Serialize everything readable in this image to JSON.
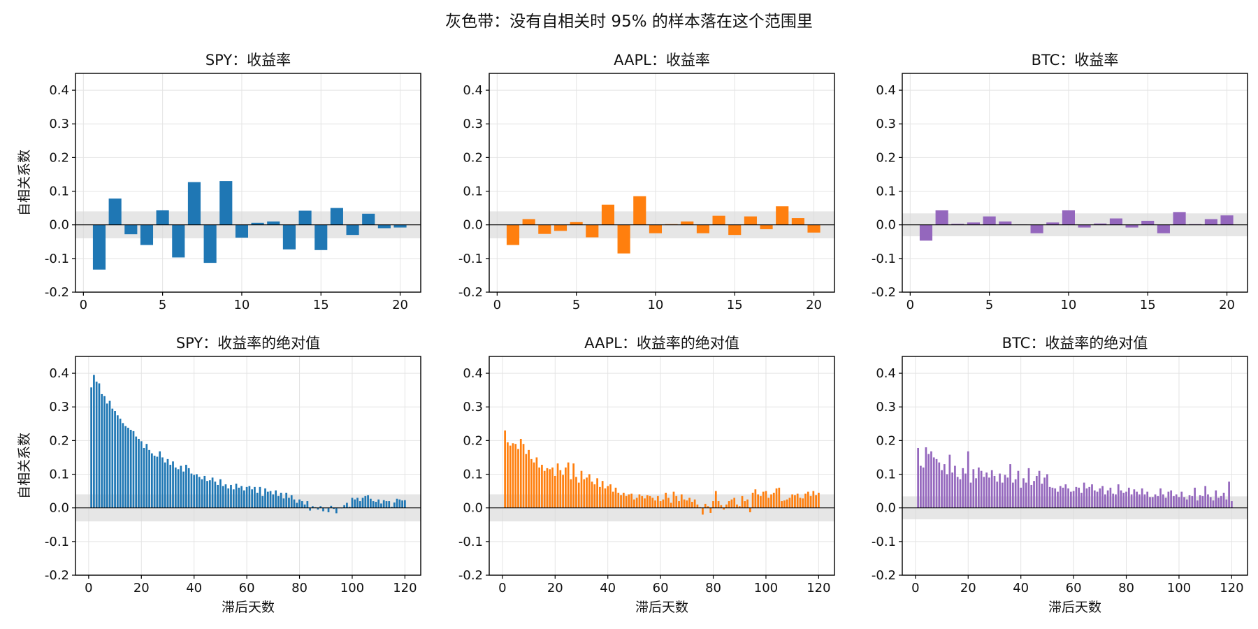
{
  "figure": {
    "suptitle": "灰色带：没有自相关时 95% 的样本落在这个范围里"
  },
  "chart_data": [
    {
      "type": "bar",
      "title": "SPY：收益率",
      "xlabel": "",
      "ylabel": "自相关系数",
      "color": "#1f77b4",
      "xlim": [
        -0.5,
        21.3
      ],
      "ylim": [
        -0.2,
        0.45
      ],
      "xticks": [
        0,
        5,
        10,
        15,
        20
      ],
      "yticks": [
        -0.2,
        -0.1,
        0.0,
        0.1,
        0.2,
        0.3,
        0.4
      ],
      "ytick_labels": [
        "-0.2",
        "-0.1",
        "0.0",
        "0.1",
        "0.2",
        "0.3",
        "0.4"
      ],
      "confidence_band": 0.04,
      "grid": true,
      "x": [
        1,
        2,
        3,
        4,
        5,
        6,
        7,
        8,
        9,
        10,
        11,
        12,
        13,
        14,
        15,
        16,
        17,
        18,
        19,
        20
      ],
      "values": [
        -0.133,
        0.078,
        -0.028,
        -0.06,
        0.043,
        -0.097,
        0.127,
        -0.113,
        0.13,
        -0.038,
        0.006,
        0.01,
        -0.073,
        0.042,
        -0.075,
        0.05,
        -0.03,
        0.033,
        -0.01,
        -0.008
      ]
    },
    {
      "type": "bar",
      "title": "AAPL：收益率",
      "xlabel": "",
      "ylabel": "",
      "color": "#ff7f0e",
      "xlim": [
        -0.5,
        21.3
      ],
      "ylim": [
        -0.2,
        0.45
      ],
      "xticks": [
        0,
        5,
        10,
        15,
        20
      ],
      "yticks": [
        -0.2,
        -0.1,
        0.0,
        0.1,
        0.2,
        0.3,
        0.4
      ],
      "ytick_labels": [
        "-0.2",
        "-0.1",
        "0.0",
        "0.1",
        "0.2",
        "0.3",
        "0.4"
      ],
      "confidence_band": 0.04,
      "grid": true,
      "x": [
        1,
        2,
        3,
        4,
        5,
        6,
        7,
        8,
        9,
        10,
        11,
        12,
        13,
        14,
        15,
        16,
        17,
        18,
        19,
        20
      ],
      "values": [
        -0.06,
        0.017,
        -0.027,
        -0.018,
        0.008,
        -0.037,
        0.06,
        -0.085,
        0.085,
        -0.025,
        0.002,
        0.01,
        -0.025,
        0.027,
        -0.03,
        0.025,
        -0.013,
        0.055,
        0.02,
        -0.023
      ]
    },
    {
      "type": "bar",
      "title": "BTC：收益率",
      "xlabel": "",
      "ylabel": "",
      "color": "#9467bd",
      "xlim": [
        -0.5,
        21.3
      ],
      "ylim": [
        -0.2,
        0.45
      ],
      "xticks": [
        0,
        5,
        10,
        15,
        20
      ],
      "yticks": [
        -0.2,
        -0.1,
        0.0,
        0.1,
        0.2,
        0.3,
        0.4
      ],
      "ytick_labels": [
        "-0.2",
        "-0.1",
        "0.0",
        "0.1",
        "0.2",
        "0.3",
        "0.4"
      ],
      "confidence_band": 0.034,
      "grid": true,
      "x": [
        1,
        2,
        3,
        4,
        5,
        6,
        7,
        8,
        9,
        10,
        11,
        12,
        13,
        14,
        15,
        16,
        17,
        18,
        19,
        20
      ],
      "values": [
        -0.047,
        0.043,
        0.003,
        0.007,
        0.025,
        0.01,
        0.001,
        -0.025,
        0.007,
        0.043,
        -0.008,
        0.004,
        0.019,
        -0.008,
        0.012,
        -0.025,
        0.038,
        0.002,
        0.017,
        0.028
      ]
    },
    {
      "type": "bar",
      "title": "SPY：收益率的绝对值",
      "xlabel": "滞后天数",
      "ylabel": "自相关系数",
      "color": "#1f77b4",
      "xlim": [
        -5,
        126
      ],
      "ylim": [
        -0.2,
        0.45
      ],
      "xticks": [
        0,
        20,
        40,
        60,
        80,
        100,
        120
      ],
      "yticks": [
        -0.2,
        -0.1,
        0.0,
        0.1,
        0.2,
        0.3,
        0.4
      ],
      "ytick_labels": [
        "-0.2",
        "-0.1",
        "0.0",
        "0.1",
        "0.2",
        "0.3",
        "0.4"
      ],
      "confidence_band": 0.04,
      "grid": true,
      "x": [
        1,
        2,
        3,
        4,
        5,
        6,
        7,
        8,
        9,
        10,
        11,
        12,
        13,
        14,
        15,
        16,
        17,
        18,
        19,
        20,
        21,
        22,
        23,
        24,
        25,
        26,
        27,
        28,
        29,
        30,
        31,
        32,
        33,
        34,
        35,
        36,
        37,
        38,
        39,
        40,
        41,
        42,
        43,
        44,
        45,
        46,
        47,
        48,
        49,
        50,
        51,
        52,
        53,
        54,
        55,
        56,
        57,
        58,
        59,
        60,
        61,
        62,
        63,
        64,
        65,
        66,
        67,
        68,
        69,
        70,
        71,
        72,
        73,
        74,
        75,
        76,
        77,
        78,
        79,
        80,
        81,
        82,
        83,
        84,
        85,
        86,
        87,
        88,
        89,
        90,
        91,
        92,
        93,
        94,
        95,
        96,
        97,
        98,
        99,
        100,
        101,
        102,
        103,
        104,
        105,
        106,
        107,
        108,
        109,
        110,
        111,
        112,
        113,
        114,
        115,
        116,
        117,
        118,
        119,
        120
      ],
      "values": [
        0.358,
        0.395,
        0.375,
        0.37,
        0.338,
        0.332,
        0.31,
        0.318,
        0.295,
        0.288,
        0.275,
        0.265,
        0.252,
        0.243,
        0.238,
        0.232,
        0.228,
        0.212,
        0.205,
        0.198,
        0.178,
        0.19,
        0.172,
        0.162,
        0.155,
        0.152,
        0.168,
        0.15,
        0.135,
        0.145,
        0.128,
        0.138,
        0.12,
        0.115,
        0.125,
        0.108,
        0.128,
        0.118,
        0.102,
        0.098,
        0.1,
        0.092,
        0.085,
        0.095,
        0.08,
        0.082,
        0.09,
        0.078,
        0.068,
        0.085,
        0.065,
        0.07,
        0.058,
        0.068,
        0.055,
        0.072,
        0.06,
        0.065,
        0.052,
        0.062,
        0.065,
        0.055,
        0.062,
        0.045,
        0.062,
        0.035,
        0.058,
        0.048,
        0.05,
        0.04,
        0.052,
        0.035,
        0.045,
        0.028,
        0.045,
        0.03,
        0.038,
        0.025,
        0.015,
        0.025,
        0.02,
        0.01,
        0.02,
        -0.008,
        0.005,
        0.002,
        -0.005,
        0.005,
        -0.01,
        0.0,
        -0.013,
        0.006,
        -0.003,
        -0.016,
        0.0,
        0.0,
        0.008,
        0.015,
        0.003,
        0.03,
        0.025,
        0.03,
        0.02,
        0.03,
        0.035,
        0.038,
        0.027,
        0.02,
        0.018,
        0.025,
        0.013,
        0.023,
        0.02,
        0.02,
        0.003,
        0.016,
        0.027,
        0.025,
        0.022,
        0.023
      ]
    },
    {
      "type": "bar",
      "title": "AAPL：收益率的绝对值",
      "xlabel": "滞后天数",
      "ylabel": "",
      "color": "#ff7f0e",
      "xlim": [
        -5,
        126
      ],
      "ylim": [
        -0.2,
        0.45
      ],
      "xticks": [
        0,
        20,
        40,
        60,
        80,
        100,
        120
      ],
      "yticks": [
        -0.2,
        -0.1,
        0.0,
        0.1,
        0.2,
        0.3,
        0.4
      ],
      "ytick_labels": [
        "-0.2",
        "-0.1",
        "0.0",
        "0.1",
        "0.2",
        "0.3",
        "0.4"
      ],
      "confidence_band": 0.04,
      "grid": true,
      "x": [
        1,
        2,
        3,
        4,
        5,
        6,
        7,
        8,
        9,
        10,
        11,
        12,
        13,
        14,
        15,
        16,
        17,
        18,
        19,
        20,
        21,
        22,
        23,
        24,
        25,
        26,
        27,
        28,
        29,
        30,
        31,
        32,
        33,
        34,
        35,
        36,
        37,
        38,
        39,
        40,
        41,
        42,
        43,
        44,
        45,
        46,
        47,
        48,
        49,
        50,
        51,
        52,
        53,
        54,
        55,
        56,
        57,
        58,
        59,
        60,
        61,
        62,
        63,
        64,
        65,
        66,
        67,
        68,
        69,
        70,
        71,
        72,
        73,
        74,
        75,
        76,
        77,
        78,
        79,
        80,
        81,
        82,
        83,
        84,
        85,
        86,
        87,
        88,
        89,
        90,
        91,
        92,
        93,
        94,
        95,
        96,
        97,
        98,
        99,
        100,
        101,
        102,
        103,
        104,
        105,
        106,
        107,
        108,
        109,
        110,
        111,
        112,
        113,
        114,
        115,
        116,
        117,
        118,
        119,
        120
      ],
      "values": [
        0.23,
        0.195,
        0.185,
        0.192,
        0.19,
        0.175,
        0.205,
        0.19,
        0.16,
        0.172,
        0.145,
        0.135,
        0.15,
        0.12,
        0.128,
        0.11,
        0.118,
        0.115,
        0.12,
        0.095,
        0.132,
        0.112,
        0.098,
        0.12,
        0.135,
        0.085,
        0.132,
        0.092,
        0.075,
        0.11,
        0.085,
        0.09,
        0.1,
        0.078,
        0.07,
        0.088,
        0.062,
        0.08,
        0.058,
        0.065,
        0.07,
        0.048,
        0.06,
        0.045,
        0.038,
        0.045,
        0.035,
        0.04,
        0.042,
        0.025,
        0.03,
        0.04,
        0.035,
        0.028,
        0.038,
        0.035,
        0.03,
        0.022,
        0.035,
        0.02,
        0.025,
        0.045,
        0.03,
        0.015,
        0.048,
        0.035,
        0.02,
        0.04,
        0.025,
        0.022,
        0.03,
        0.018,
        0.025,
        0.01,
        0.002,
        -0.02,
        0.012,
        0.005,
        -0.015,
        0.02,
        0.05,
        0.02,
        0.008,
        -0.005,
        0.01,
        0.02,
        0.025,
        0.03,
        0.01,
        0.005,
        0.035,
        0.02,
        0.025,
        -0.013,
        0.045,
        0.055,
        0.04,
        0.035,
        0.048,
        0.05,
        0.03,
        0.04,
        0.045,
        0.058,
        0.06,
        0.02,
        0.022,
        0.025,
        0.03,
        0.04,
        0.038,
        0.042,
        0.03,
        0.028,
        0.042,
        0.048,
        0.035,
        0.05,
        0.038,
        0.045
      ]
    },
    {
      "type": "bar",
      "title": "BTC：收益率的绝对值",
      "xlabel": "滞后天数",
      "ylabel": "",
      "color": "#9467bd",
      "xlim": [
        -5,
        126
      ],
      "ylim": [
        -0.2,
        0.45
      ],
      "xticks": [
        0,
        20,
        40,
        60,
        80,
        100,
        120
      ],
      "yticks": [
        -0.2,
        -0.1,
        0.0,
        0.1,
        0.2,
        0.3,
        0.4
      ],
      "ytick_labels": [
        "-0.2",
        "-0.1",
        "0.0",
        "0.1",
        "0.2",
        "0.3",
        "0.4"
      ],
      "confidence_band": 0.034,
      "grid": true,
      "x": [
        1,
        2,
        3,
        4,
        5,
        6,
        7,
        8,
        9,
        10,
        11,
        12,
        13,
        14,
        15,
        16,
        17,
        18,
        19,
        20,
        21,
        22,
        23,
        24,
        25,
        26,
        27,
        28,
        29,
        30,
        31,
        32,
        33,
        34,
        35,
        36,
        37,
        38,
        39,
        40,
        41,
        42,
        43,
        44,
        45,
        46,
        47,
        48,
        49,
        50,
        51,
        52,
        53,
        54,
        55,
        56,
        57,
        58,
        59,
        60,
        61,
        62,
        63,
        64,
        65,
        66,
        67,
        68,
        69,
        70,
        71,
        72,
        73,
        74,
        75,
        76,
        77,
        78,
        79,
        80,
        81,
        82,
        83,
        84,
        85,
        86,
        87,
        88,
        89,
        90,
        91,
        92,
        93,
        94,
        95,
        96,
        97,
        98,
        99,
        100,
        101,
        102,
        103,
        104,
        105,
        106,
        107,
        108,
        109,
        110,
        111,
        112,
        113,
        114,
        115,
        116,
        117,
        118,
        119,
        120
      ],
      "values": [
        0.178,
        0.125,
        0.12,
        0.18,
        0.16,
        0.168,
        0.15,
        0.145,
        0.135,
        0.112,
        0.13,
        0.1,
        0.158,
        0.105,
        0.125,
        0.092,
        0.085,
        0.118,
        0.102,
        0.168,
        0.075,
        0.115,
        0.088,
        0.12,
        0.11,
        0.092,
        0.105,
        0.09,
        0.112,
        0.095,
        0.078,
        0.102,
        0.075,
        0.098,
        0.09,
        0.13,
        0.075,
        0.085,
        0.11,
        0.06,
        0.088,
        0.075,
        0.118,
        0.068,
        0.08,
        0.095,
        0.11,
        0.072,
        0.09,
        0.1,
        0.062,
        0.06,
        0.058,
        0.048,
        0.065,
        0.06,
        0.07,
        0.058,
        0.048,
        0.05,
        0.062,
        0.06,
        0.045,
        0.075,
        0.058,
        0.062,
        0.07,
        0.052,
        0.048,
        0.058,
        0.065,
        0.04,
        0.052,
        0.06,
        0.042,
        0.04,
        0.07,
        0.052,
        0.045,
        0.048,
        0.06,
        0.04,
        0.055,
        0.048,
        0.04,
        0.058,
        0.04,
        0.048,
        0.032,
        0.032,
        0.04,
        0.035,
        0.058,
        0.04,
        0.03,
        0.048,
        0.052,
        0.035,
        0.04,
        0.032,
        0.048,
        0.032,
        0.025,
        0.038,
        0.035,
        0.06,
        0.022,
        0.038,
        0.035,
        0.065,
        0.04,
        0.032,
        0.022,
        0.052,
        0.03,
        0.035,
        0.045,
        0.025,
        0.078,
        0.02
      ]
    }
  ]
}
